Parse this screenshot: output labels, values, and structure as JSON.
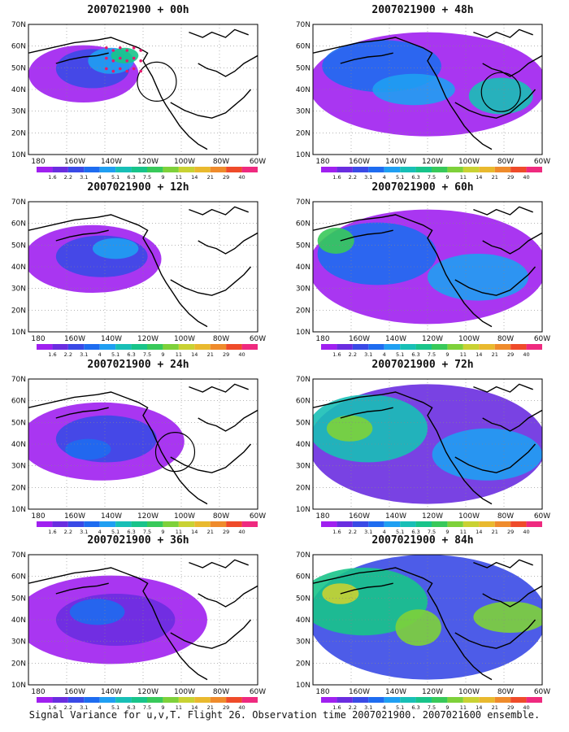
{
  "figure": {
    "footer_caption": "Signal Variance for u,v,T. Flight 26. Observation time 2007021900. 2007021600 ensemble.",
    "lat_labels": [
      "10N",
      "20N",
      "30N",
      "40N",
      "50N",
      "60N",
      "70N"
    ],
    "lon_labels": [
      "180",
      "160W",
      "140W",
      "120W",
      "100W",
      "80W",
      "60W"
    ],
    "colorbar_labels": [
      "1.6",
      "2.2",
      "3.1",
      "4",
      "5.1",
      "6.3",
      "7.5",
      "9",
      "11",
      "14",
      "21",
      "29",
      "40"
    ],
    "colorbar_colors": [
      "#a020f0",
      "#6a2de0",
      "#3a4ae6",
      "#1e6cf0",
      "#1f9ff2",
      "#18bfb6",
      "#18c48a",
      "#38c95a",
      "#7ed13a",
      "#c9d233",
      "#e9b92e",
      "#ef8b2c",
      "#ef4b2a",
      "#ef2a7f"
    ],
    "colors": {
      "land_line": "#000000",
      "grid": "#888888",
      "ocean": "#ffffff",
      "marker_dots": "#e6196e"
    }
  },
  "panels": [
    {
      "title": "2007021900 + 00h",
      "hour": 0,
      "circle": true,
      "dots": true
    },
    {
      "title": "2007021900 + 12h",
      "hour": 12,
      "circle": false,
      "dots": false
    },
    {
      "title": "2007021900 + 24h",
      "hour": 24,
      "circle": true,
      "dots": false
    },
    {
      "title": "2007021900 + 36h",
      "hour": 36,
      "circle": false,
      "dots": false
    },
    {
      "title": "2007021900 + 48h",
      "hour": 48,
      "circle": true,
      "dots": false
    },
    {
      "title": "2007021900 + 60h",
      "hour": 60,
      "circle": false,
      "dots": false
    },
    {
      "title": "2007021900 + 72h",
      "hour": 72,
      "circle": false,
      "dots": false
    },
    {
      "title": "2007021900 + 84h",
      "hour": 84,
      "circle": false,
      "dots": false
    }
  ]
}
